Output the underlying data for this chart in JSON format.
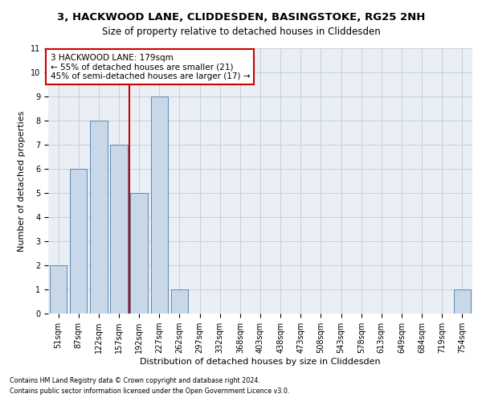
{
  "title": "3, HACKWOOD LANE, CLIDDESDEN, BASINGSTOKE, RG25 2NH",
  "subtitle": "Size of property relative to detached houses in Cliddesden",
  "xlabel": "Distribution of detached houses by size in Cliddesden",
  "ylabel": "Number of detached properties",
  "footnote1": "Contains HM Land Registry data © Crown copyright and database right 2024.",
  "footnote2": "Contains public sector information licensed under the Open Government Licence v3.0.",
  "bin_labels": [
    "51sqm",
    "87sqm",
    "122sqm",
    "157sqm",
    "192sqm",
    "227sqm",
    "262sqm",
    "297sqm",
    "332sqm",
    "368sqm",
    "403sqm",
    "438sqm",
    "473sqm",
    "508sqm",
    "543sqm",
    "578sqm",
    "613sqm",
    "649sqm",
    "684sqm",
    "719sqm",
    "754sqm"
  ],
  "bar_values": [
    2,
    6,
    8,
    7,
    5,
    9,
    1,
    0,
    0,
    0,
    0,
    0,
    0,
    0,
    0,
    0,
    0,
    0,
    0,
    0,
    1
  ],
  "bar_color": "#c8d8e8",
  "bar_edge_color": "#5a8ab0",
  "grid_color": "#c8d0d8",
  "background_color": "#eaeff5",
  "ylim": [
    0,
    11
  ],
  "yticks": [
    0,
    1,
    2,
    3,
    4,
    5,
    6,
    7,
    8,
    9,
    10,
    11
  ],
  "property_bin_index": 3,
  "vline_color": "#cc0000",
  "annotation_line1": "3 HACKWOOD LANE: 179sqm",
  "annotation_line2": "← 55% of detached houses are smaller (21)",
  "annotation_line3": "45% of semi-detached houses are larger (17) →",
  "annotation_box_color": "#cc0000",
  "annotation_fontsize": 7.5,
  "title_fontsize": 9.5,
  "subtitle_fontsize": 8.5,
  "axis_label_fontsize": 8,
  "tick_fontsize": 7
}
